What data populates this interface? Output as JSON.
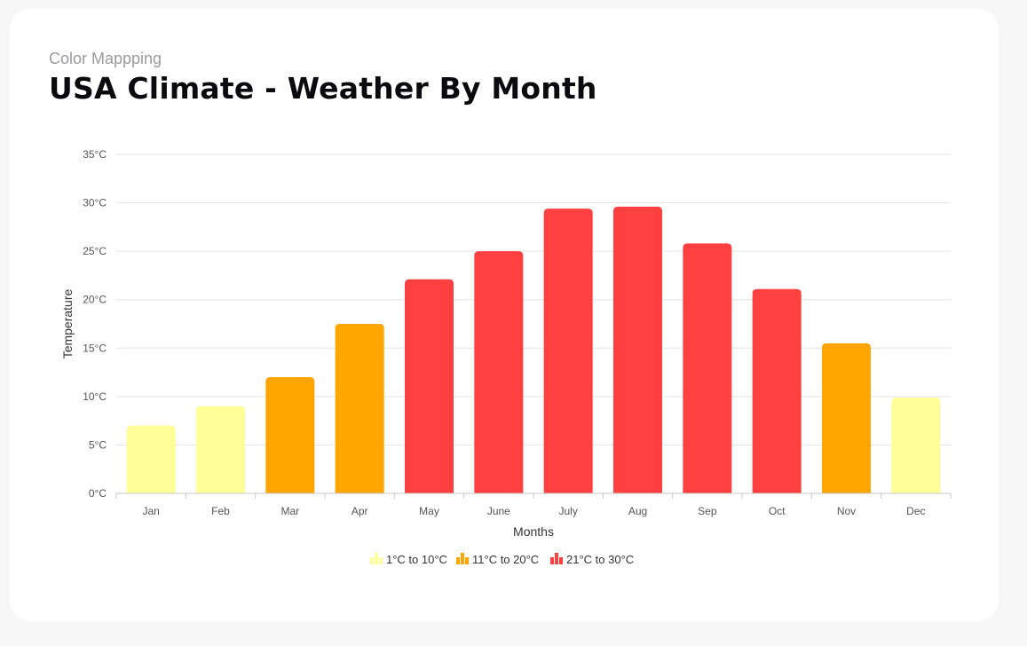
{
  "header": {
    "subtitle": "Color Mappping",
    "title": "USA Climate - Weather By Month"
  },
  "chart_data": {
    "type": "bar",
    "title": "USA Climate - Weather By Month",
    "subtitle": "Color Mappping",
    "xlabel": "Months",
    "ylabel": "Temperature",
    "categories": [
      "Jan",
      "Feb",
      "Mar",
      "Apr",
      "May",
      "June",
      "July",
      "Aug",
      "Sep",
      "Oct",
      "Nov",
      "Dec"
    ],
    "values": [
      7,
      9,
      12,
      17.5,
      22.1,
      25,
      29.4,
      29.6,
      25.8,
      21.1,
      15.5,
      9.9
    ],
    "ylim": [
      0,
      35
    ],
    "yticks": [
      0,
      5,
      10,
      15,
      20,
      25,
      30,
      35
    ],
    "ytick_labels": [
      "0°C",
      "5°C",
      "10°C",
      "15°C",
      "20°C",
      "25°C",
      "30°C",
      "35°C"
    ],
    "grid": true,
    "legend_position": "bottom-center",
    "color_ranges": [
      {
        "label": "1°C to 10°C",
        "from": 1,
        "to": 10,
        "color": "#ffff99"
      },
      {
        "label": "11°C to 20°C",
        "from": 11,
        "to": 20,
        "color": "#ffa500"
      },
      {
        "label": "21°C to 30°C",
        "from": 21,
        "to": 30,
        "color": "#ff4040"
      }
    ]
  }
}
